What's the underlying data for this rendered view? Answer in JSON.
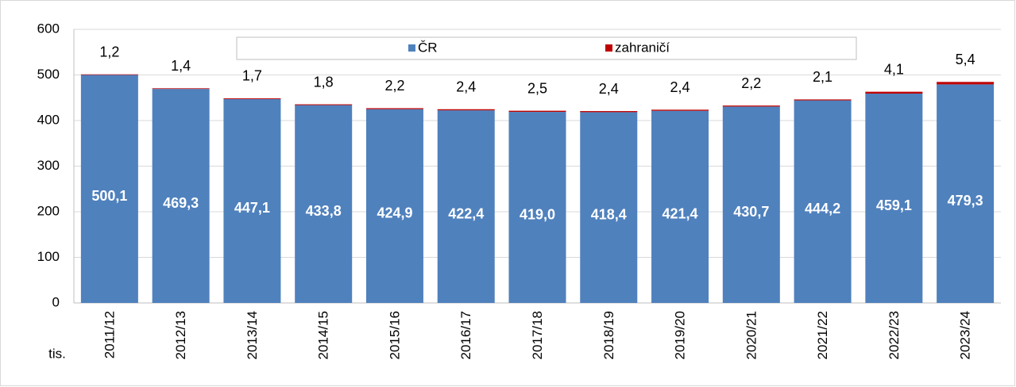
{
  "chart_data": {
    "type": "stacked_bar",
    "y_label": "tis.",
    "categories": [
      "2011/12",
      "2012/13",
      "2013/14",
      "2014/15",
      "2015/16",
      "2016/17",
      "2017/18",
      "2018/19",
      "2019/20",
      "2020/21",
      "2021/22",
      "2022/23",
      "2023/24"
    ],
    "series": [
      {
        "name": "ČR",
        "color": "#4f81bd",
        "values": [
          500.1,
          469.3,
          447.1,
          433.8,
          424.9,
          422.4,
          419.0,
          418.4,
          421.4,
          430.7,
          444.2,
          459.1,
          479.3
        ],
        "value_labels": [
          "500,1",
          "469,3",
          "447,1",
          "433,8",
          "424,9",
          "422,4",
          "419,0",
          "418,4",
          "421,4",
          "430,7",
          "444,2",
          "459,1",
          "479,3"
        ]
      },
      {
        "name": "zahraničí",
        "color": "#c00000",
        "values": [
          1.2,
          1.4,
          1.7,
          1.8,
          2.2,
          2.4,
          2.5,
          2.4,
          2.4,
          2.2,
          2.1,
          4.1,
          5.4
        ],
        "value_labels": [
          "1,2",
          "1,4",
          "1,7",
          "1,8",
          "2,2",
          "2,4",
          "2,5",
          "2,4",
          "2,4",
          "2,2",
          "2,1",
          "4,1",
          "5,4"
        ]
      }
    ],
    "ylim": [
      0,
      600
    ],
    "yticks": [
      0,
      100,
      200,
      300,
      400,
      500,
      600
    ],
    "grid": true,
    "legend": "top"
  }
}
